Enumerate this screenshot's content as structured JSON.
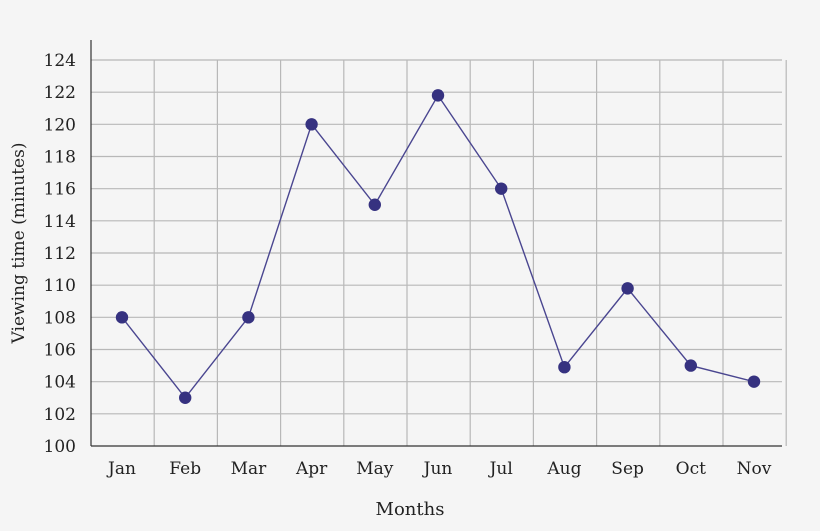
{
  "chart_data": {
    "type": "line",
    "title": "",
    "xlabel": "Months",
    "ylabel": "Viewing time (minutes)",
    "categories": [
      "Jan",
      "Feb",
      "Mar",
      "Apr",
      "May",
      "Jun",
      "Jul",
      "Aug",
      "Sep",
      "Oct",
      "Nov"
    ],
    "series": [
      {
        "values": [
          108,
          103,
          108,
          120,
          115,
          121.8,
          116,
          104.9,
          109.8,
          105,
          104
        ]
      }
    ],
    "ylim": [
      100,
      124
    ],
    "yticks": [
      100,
      102,
      104,
      106,
      108,
      110,
      112,
      114,
      116,
      118,
      120,
      122,
      124
    ],
    "grid": true,
    "colors": {
      "line": "#4a4690",
      "marker": "#363280",
      "grid": "#b8b8b8",
      "axis": "#333333",
      "background": "#f5f5f5"
    }
  }
}
